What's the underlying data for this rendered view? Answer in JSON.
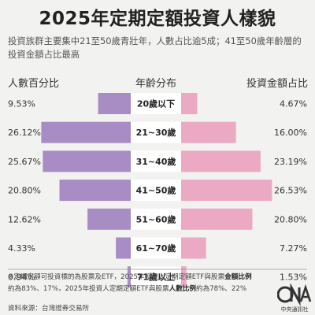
{
  "title": "2025年定期定額投資人樣貌",
  "subtitle": "投資族群主要集中21至50歲青壯年，人數占比逾5成；41至50歲年齡層的投資金額占比最高",
  "headers": {
    "left": "人數百分比",
    "center": "年齡分布",
    "right": "投資金額占比"
  },
  "chart_data": {
    "type": "bar",
    "categories": [
      "20歲以下",
      "21~30歲",
      "31~40歲",
      "41~50歲",
      "51~60歲",
      "61~70歲",
      "71歲以上"
    ],
    "series": [
      {
        "name": "人數百分比",
        "values": [
          9.53,
          26.12,
          25.67,
          20.8,
          12.62,
          4.33,
          0.94
        ],
        "labels": [
          "9.53%",
          "26.12%",
          "25.67%",
          "20.80%",
          "12.62%",
          "4.33%",
          "0.94%"
        ],
        "color": "#a78dc4"
      },
      {
        "name": "投資金額占比",
        "values": [
          4.67,
          16.0,
          23.19,
          26.53,
          20.8,
          7.27,
          1.53
        ],
        "labels": [
          "4.67%",
          "16.00%",
          "23.19%",
          "26.53%",
          "20.80%",
          "7.27%",
          "1.53%"
        ],
        "color": "#eba9c3"
      }
    ],
    "orientation": "horizontal-butterfly"
  },
  "footnote": {
    "line1_prefix": "※定期定額可投資標的為股票及ETF，2025年投資人定期定額ETF與股票",
    "line1_bold": "金額比例",
    "line2_a": "約為83%、17%，2025年投資人定期定額ETF與股票",
    "line2_bold": "人數比例",
    "line2_b": "約為78%、22%"
  },
  "source": "資料來源：台灣證券交易所",
  "logo": {
    "text": "CNA",
    "caption": "中央通訊社"
  }
}
